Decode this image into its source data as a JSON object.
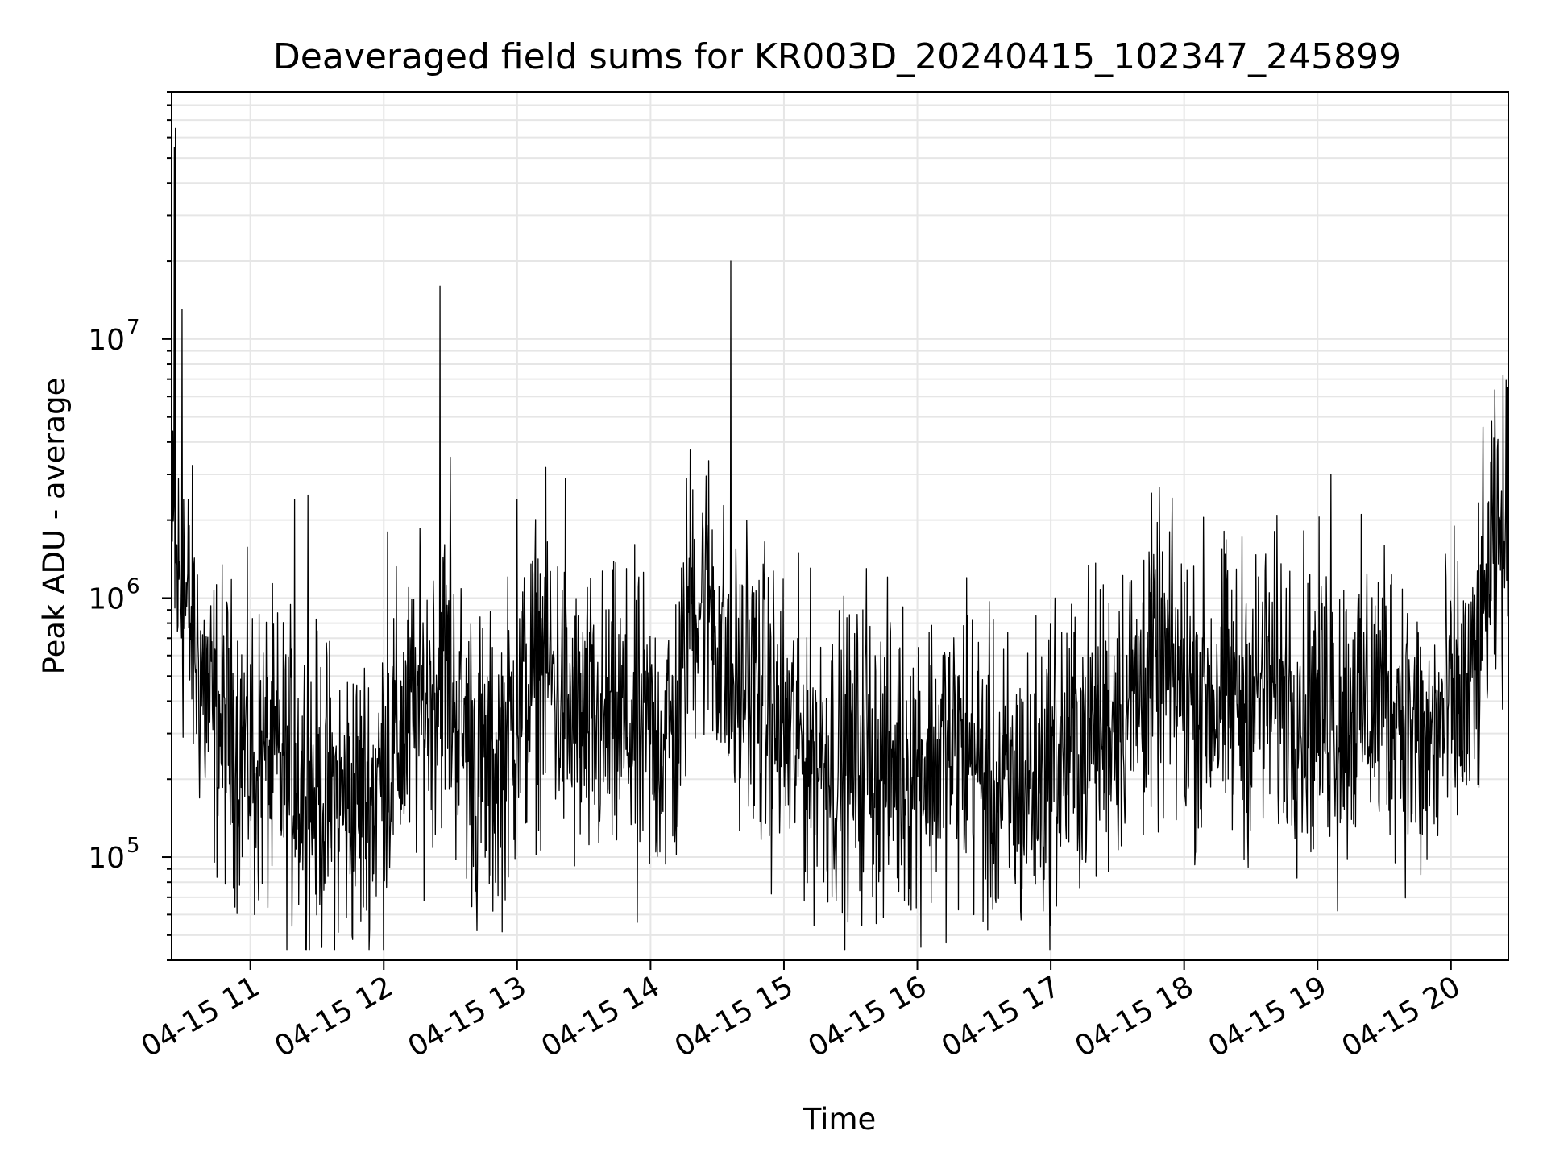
{
  "chart_data": {
    "type": "line",
    "title": "Deaveraged field sums for KR003D_20240415_102347_245899",
    "xlabel": "Time",
    "ylabel": "Peak ADU - average",
    "x_range_hours": [
      10.41,
      20.43
    ],
    "ylim": [
      40000,
      90000000
    ],
    "yscale": "log",
    "grid": true,
    "line_color": "#000000",
    "grid_color": "#e6e6e6",
    "x_ticks": [
      {
        "hour": 11,
        "label": "04-15 11"
      },
      {
        "hour": 12,
        "label": "04-15 12"
      },
      {
        "hour": 13,
        "label": "04-15 13"
      },
      {
        "hour": 14,
        "label": "04-15 14"
      },
      {
        "hour": 15,
        "label": "04-15 15"
      },
      {
        "hour": 16,
        "label": "04-15 16"
      },
      {
        "hour": 17,
        "label": "04-15 17"
      },
      {
        "hour": 18,
        "label": "04-15 18"
      },
      {
        "hour": 19,
        "label": "04-15 19"
      },
      {
        "hour": 20,
        "label": "04-15 20"
      }
    ],
    "y_ticks": [
      {
        "value": 100000,
        "base": "10",
        "exp": "5"
      },
      {
        "value": 1000000,
        "base": "10",
        "exp": "6"
      },
      {
        "value": 10000000,
        "base": "10",
        "exp": "7"
      }
    ],
    "series": [
      {
        "baseline": {
          "x": [
            10.41,
            10.45,
            10.55,
            10.7,
            10.9,
            11.1,
            11.3,
            11.5,
            11.7,
            11.9,
            12.1,
            12.3,
            12.45,
            12.6,
            12.8,
            13.0,
            13.2,
            13.4,
            13.6,
            13.8,
            14.0,
            14.2,
            14.3,
            14.45,
            14.6,
            14.8,
            15.0,
            15.2,
            15.4,
            15.6,
            15.8,
            16.0,
            16.2,
            16.4,
            16.55,
            16.7,
            16.9,
            17.1,
            17.3,
            17.5,
            17.65,
            17.8,
            18.0,
            18.2,
            18.4,
            18.6,
            18.8,
            19.0,
            19.2,
            19.4,
            19.6,
            19.8,
            20.0,
            20.15,
            20.3,
            20.43
          ],
          "y": [
            1500000,
            1200000,
            800000,
            350000,
            280000,
            240000,
            210000,
            180000,
            160000,
            170000,
            280000,
            380000,
            550000,
            300000,
            200000,
            350000,
            600000,
            320000,
            300000,
            320000,
            280000,
            300000,
            1100000,
            1000000,
            450000,
            420000,
            300000,
            260000,
            230000,
            240000,
            230000,
            240000,
            250000,
            260000,
            180000,
            180000,
            200000,
            260000,
            300000,
            380000,
            420000,
            550000,
            450000,
            420000,
            400000,
            450000,
            420000,
            380000,
            380000,
            400000,
            420000,
            240000,
            380000,
            400000,
            1300000,
            1800000
          ]
        },
        "spikes": {
          "x": [
            10.43,
            10.44,
            10.49,
            12.42,
            14.6,
            10.5,
            11.33,
            11.43,
            12.5,
            12.03,
            13.0,
            13.36,
            14.3,
            14.72,
            15.62,
            16.37,
            17.03,
            17.7,
            19.1,
            19.5,
            20.38,
            20.42,
            16.55,
            12.7,
            13.9,
            11.03,
            19.15
          ],
          "y": [
            55000000,
            65000000,
            13000000,
            16000000,
            20000000,
            2400000,
            2400000,
            2500000,
            3500000,
            1800000,
            2400000,
            2900000,
            2300000,
            2000000,
            1300000,
            1200000,
            1000000,
            1400000,
            3000000,
            1600000,
            2600000,
            6500000,
            70000,
            52000,
            56000,
            60000,
            62000
          ]
        }
      }
    ]
  }
}
